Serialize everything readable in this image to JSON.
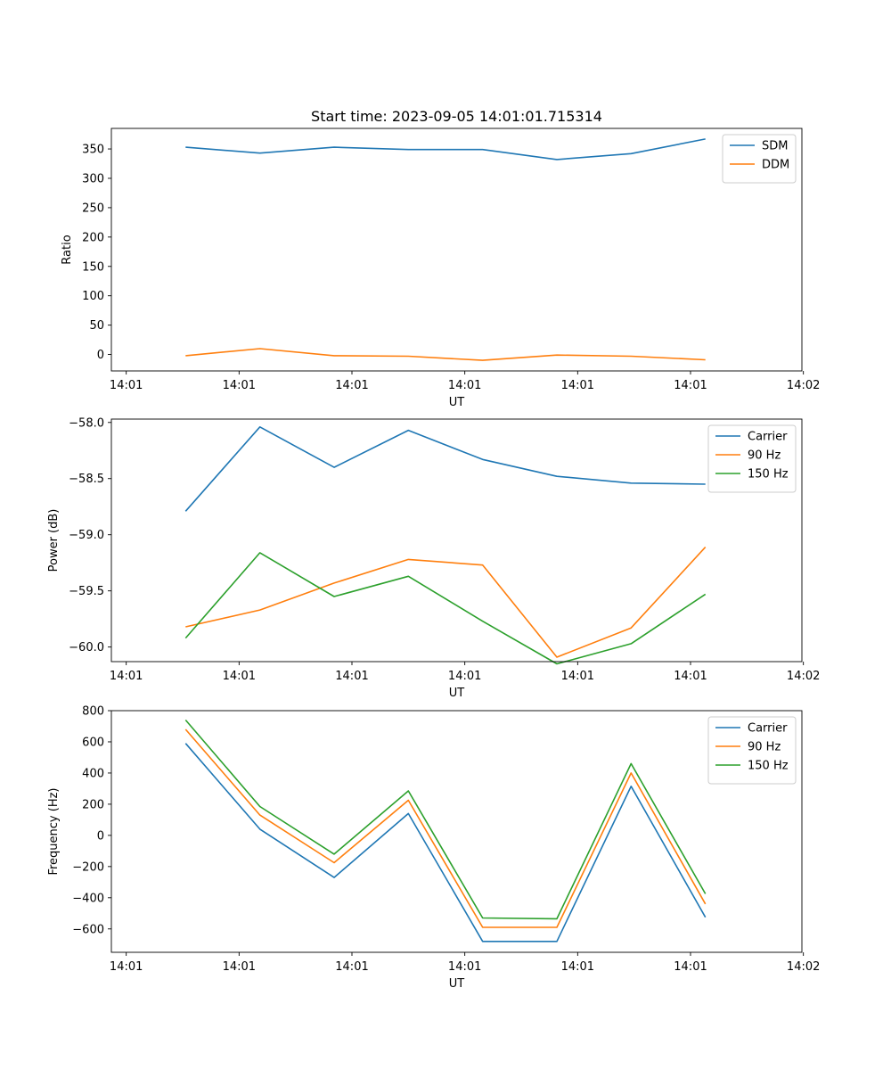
{
  "colors": {
    "blue": "#1f77b4",
    "orange": "#ff7f0e",
    "green": "#2ca02c"
  },
  "chart_data": [
    {
      "type": "line",
      "title": "Start time: 2023-09-05 14:01:01.715314",
      "xlabel": "UT",
      "ylabel": "Ratio",
      "ylim": [
        -28,
        385
      ],
      "yticks": [
        0,
        50,
        100,
        150,
        200,
        250,
        300,
        350
      ],
      "xlim": [
        0,
        9.3
      ],
      "xticks": [
        0.2,
        1.72,
        3.24,
        4.76,
        6.28,
        7.8,
        9.32
      ],
      "xticklabels": [
        "14:01",
        "14:01",
        "14:01",
        "14:01",
        "14:01",
        "14:01",
        "14:02"
      ],
      "x": [
        1,
        2,
        3,
        4,
        5,
        6,
        7,
        8
      ],
      "legend_position": "upper right",
      "series": [
        {
          "name": "SDM",
          "color": "#1f77b4",
          "values": [
            353,
            343,
            353,
            349,
            349,
            332,
            342,
            367
          ]
        },
        {
          "name": "DDM",
          "color": "#ff7f0e",
          "values": [
            -2,
            10,
            -2,
            -3,
            -10,
            -1,
            -3,
            -9
          ]
        }
      ]
    },
    {
      "type": "line",
      "title": "",
      "xlabel": "UT",
      "ylabel": "Power (dB)",
      "ylim": [
        -60.13,
        -57.97
      ],
      "yticks": [
        -60.0,
        -59.5,
        -59.0,
        -58.5,
        -58.0
      ],
      "yticklabels": [
        "−60.0",
        "−59.5",
        "−59.0",
        "−58.5",
        "−58.0"
      ],
      "xlim": [
        0,
        9.3
      ],
      "xticks": [
        0.2,
        1.72,
        3.24,
        4.76,
        6.28,
        7.8,
        9.32
      ],
      "xticklabels": [
        "14:01",
        "14:01",
        "14:01",
        "14:01",
        "14:01",
        "14:01",
        "14:02"
      ],
      "x": [
        1,
        2,
        3,
        4,
        5,
        6,
        7,
        8
      ],
      "legend_position": "upper right",
      "series": [
        {
          "name": "Carrier",
          "color": "#1f77b4",
          "values": [
            -58.79,
            -58.04,
            -58.4,
            -58.07,
            -58.33,
            -58.48,
            -58.54,
            -58.55
          ]
        },
        {
          "name": "90 Hz",
          "color": "#ff7f0e",
          "values": [
            -59.82,
            -59.67,
            -59.43,
            -59.22,
            -59.27,
            -60.09,
            -59.83,
            -59.11
          ]
        },
        {
          "name": "150 Hz",
          "color": "#2ca02c",
          "values": [
            -59.92,
            -59.16,
            -59.55,
            -59.37,
            -59.77,
            -60.15,
            -59.97,
            -59.53
          ]
        }
      ]
    },
    {
      "type": "line",
      "title": "",
      "xlabel": "UT",
      "ylabel": "Frequency (Hz)",
      "ylim": [
        -750,
        800
      ],
      "yticks": [
        -600,
        -400,
        -200,
        0,
        200,
        400,
        600,
        800
      ],
      "yticklabels": [
        "−600",
        "−400",
        "−200",
        "0",
        "200",
        "400",
        "600",
        "800"
      ],
      "xlim": [
        0,
        9.3
      ],
      "xticks": [
        0.2,
        1.72,
        3.24,
        4.76,
        6.28,
        7.8,
        9.32
      ],
      "xticklabels": [
        "14:01",
        "14:01",
        "14:01",
        "14:01",
        "14:01",
        "14:01",
        "14:02"
      ],
      "x": [
        1,
        2,
        3,
        4,
        5,
        6,
        7,
        8
      ],
      "legend_position": "upper right",
      "series": [
        {
          "name": "Carrier",
          "color": "#1f77b4",
          "values": [
            590,
            40,
            -270,
            140,
            -680,
            -680,
            315,
            -525
          ]
        },
        {
          "name": "90 Hz",
          "color": "#ff7f0e",
          "values": [
            680,
            130,
            -175,
            225,
            -590,
            -590,
            400,
            -440
          ]
        },
        {
          "name": "150 Hz",
          "color": "#2ca02c",
          "values": [
            740,
            185,
            -120,
            285,
            -530,
            -535,
            460,
            -375
          ]
        }
      ]
    }
  ]
}
